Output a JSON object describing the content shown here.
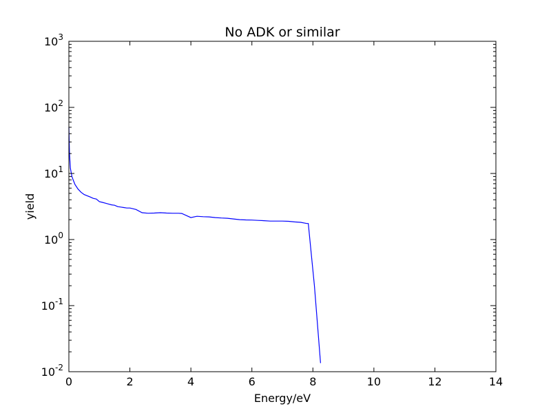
{
  "chart_data": {
    "type": "line",
    "title": "No ADK or similar",
    "xlabel": "Energy/eV",
    "ylabel": "yield",
    "xlim": [
      0,
      14
    ],
    "ylim": [
      0.01,
      1000
    ],
    "yscale": "log",
    "grid": false,
    "xticks": [
      "0",
      "2",
      "4",
      "6",
      "8",
      "10",
      "12",
      "14"
    ],
    "yticks": [
      {
        "base": "10",
        "exp": "-2"
      },
      {
        "base": "10",
        "exp": "-1"
      },
      {
        "base": "10",
        "exp": "0"
      },
      {
        "base": "10",
        "exp": "1"
      },
      {
        "base": "10",
        "exp": "2"
      },
      {
        "base": "10",
        "exp": "3"
      }
    ],
    "series": [
      {
        "color": "#0000ff",
        "x": [
          0.0,
          0.02,
          0.05,
          0.1,
          0.15,
          0.2,
          0.3,
          0.4,
          0.5,
          0.6,
          0.7,
          0.8,
          0.9,
          1.0,
          1.1,
          1.2,
          1.3,
          1.4,
          1.5,
          1.6,
          1.7,
          1.8,
          1.9,
          2.0,
          2.2,
          2.4,
          2.6,
          2.8,
          3.0,
          3.2,
          3.4,
          3.6,
          3.7,
          4.0,
          4.2,
          4.4,
          4.6,
          4.8,
          5.0,
          5.2,
          5.4,
          5.6,
          5.8,
          6.0,
          6.2,
          6.4,
          6.6,
          6.8,
          7.0,
          7.2,
          7.4,
          7.6,
          7.8,
          7.85,
          8.05,
          8.25
        ],
        "y": [
          50,
          20,
          12,
          9.0,
          7.8,
          6.8,
          5.8,
          5.2,
          4.8,
          4.6,
          4.4,
          4.2,
          4.1,
          3.75,
          3.65,
          3.55,
          3.45,
          3.35,
          3.3,
          3.15,
          3.1,
          3.05,
          3.0,
          3.0,
          2.85,
          2.55,
          2.5,
          2.52,
          2.55,
          2.52,
          2.5,
          2.5,
          2.48,
          2.15,
          2.25,
          2.22,
          2.2,
          2.15,
          2.12,
          2.1,
          2.05,
          2.0,
          1.98,
          1.97,
          1.95,
          1.93,
          1.9,
          1.9,
          1.9,
          1.89,
          1.85,
          1.82,
          1.75,
          1.75,
          0.2,
          0.0135
        ]
      }
    ]
  }
}
